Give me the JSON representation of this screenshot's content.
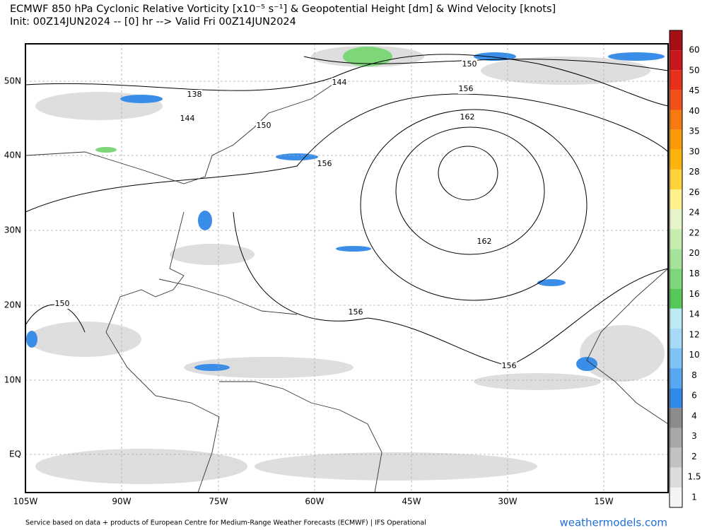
{
  "header": {
    "title": "ECMWF 850 hPa Cyclonic Relative Vorticity [x10⁻⁵ s⁻¹] & Geopotential Height [dm] & Wind Velocity [knots]",
    "subtitle": "Init: 00Z14JUN2024 -- [0] hr --> Valid Fri 00Z14JUN2024"
  },
  "map": {
    "lat_labels": [
      "50N",
      "40N",
      "30N",
      "20N",
      "10N",
      "EQ"
    ],
    "lon_labels": [
      "105W",
      "90W",
      "75W",
      "60W",
      "45W",
      "30W",
      "15W"
    ],
    "contour_labels": [
      "150",
      "156",
      "162",
      "138",
      "144",
      "144",
      "150",
      "156",
      "162",
      "150",
      "156",
      "156"
    ]
  },
  "colorbar": {
    "labels": [
      "60",
      "50",
      "45",
      "40",
      "35",
      "30",
      "28",
      "26",
      "24",
      "22",
      "20",
      "18",
      "16",
      "14",
      "12",
      "10",
      "8",
      "6",
      "4",
      "3",
      "2",
      "1.5",
      "1"
    ]
  },
  "footer": {
    "credit": "Service based on data + products of European Centre for Medium-Range Weather Forecasts (ECMWF) | IFS Operational",
    "logo": "weathermodels.com"
  }
}
